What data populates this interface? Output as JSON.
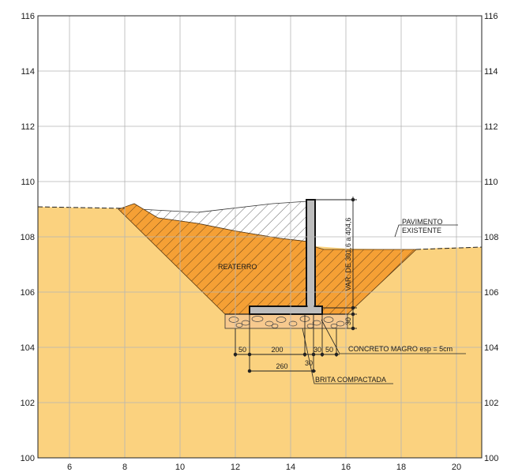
{
  "colors": {
    "natural_ground": "#fbd27f",
    "backfill": "#f5a035",
    "backfill_hatch": "#5a3a14",
    "wall": "#bdbdbd",
    "gravel": "#f7c98e",
    "grid": "#b5b5b5"
  },
  "axes": {
    "x_ticks": [
      "6",
      "8",
      "10",
      "12",
      "14",
      "16",
      "18",
      "20"
    ],
    "y_ticks": [
      "100",
      "102",
      "104",
      "106",
      "108",
      "110",
      "112",
      "114",
      "116"
    ]
  },
  "labels": {
    "pavement_line1": "PAVIMENTO",
    "pavement_line2": "EXISTENTE",
    "backfill": "REATERRO",
    "wall_height": "VAR. DE 301,6 a 404,6",
    "lean_concrete": "CONCRETO MAGRO esp = 5cm",
    "compacted_gravel": "BRITA COMPACTADA"
  },
  "dimensions": {
    "d50_left": "50",
    "d200": "200",
    "d30_right": "30",
    "d50_right": "50",
    "d30_below": "30",
    "d260": "260",
    "d30_side": "30"
  }
}
